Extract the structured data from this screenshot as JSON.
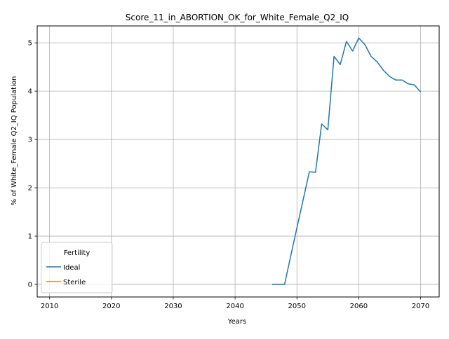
{
  "chart_data": {
    "type": "line",
    "title": "Score_11_in_ABORTION_OK_for_White_Female_Q2_IQ",
    "xlabel": "Years",
    "ylabel": "% of White_Female Q2_IQ Population",
    "xlim": [
      2008,
      2073
    ],
    "ylim": [
      -0.26,
      5.35
    ],
    "xticks": [
      2010,
      2020,
      2030,
      2040,
      2050,
      2060,
      2070
    ],
    "yticks": [
      0,
      1,
      2,
      3,
      4,
      5
    ],
    "grid": true,
    "legend": {
      "title": "Fertility",
      "placement": "lower-left"
    },
    "series": [
      {
        "name": "Ideal",
        "color": "#1f77b4",
        "x": [
          2046,
          2047,
          2048,
          2049,
          2050,
          2051,
          2052,
          2053,
          2054,
          2055,
          2056,
          2057,
          2058,
          2059,
          2060,
          2061,
          2062,
          2063,
          2064,
          2065,
          2066,
          2067,
          2068,
          2069,
          2070
        ],
        "y": [
          0.0,
          0.0,
          0.0,
          0.59,
          1.17,
          1.75,
          2.33,
          2.32,
          3.32,
          3.2,
          4.72,
          4.55,
          5.03,
          4.83,
          5.1,
          4.96,
          4.72,
          4.6,
          4.43,
          4.3,
          4.23,
          4.23,
          4.15,
          4.13,
          3.98
        ]
      },
      {
        "name": "Sterile",
        "color": "#ff7f0e",
        "x": [],
        "y": []
      }
    ]
  }
}
